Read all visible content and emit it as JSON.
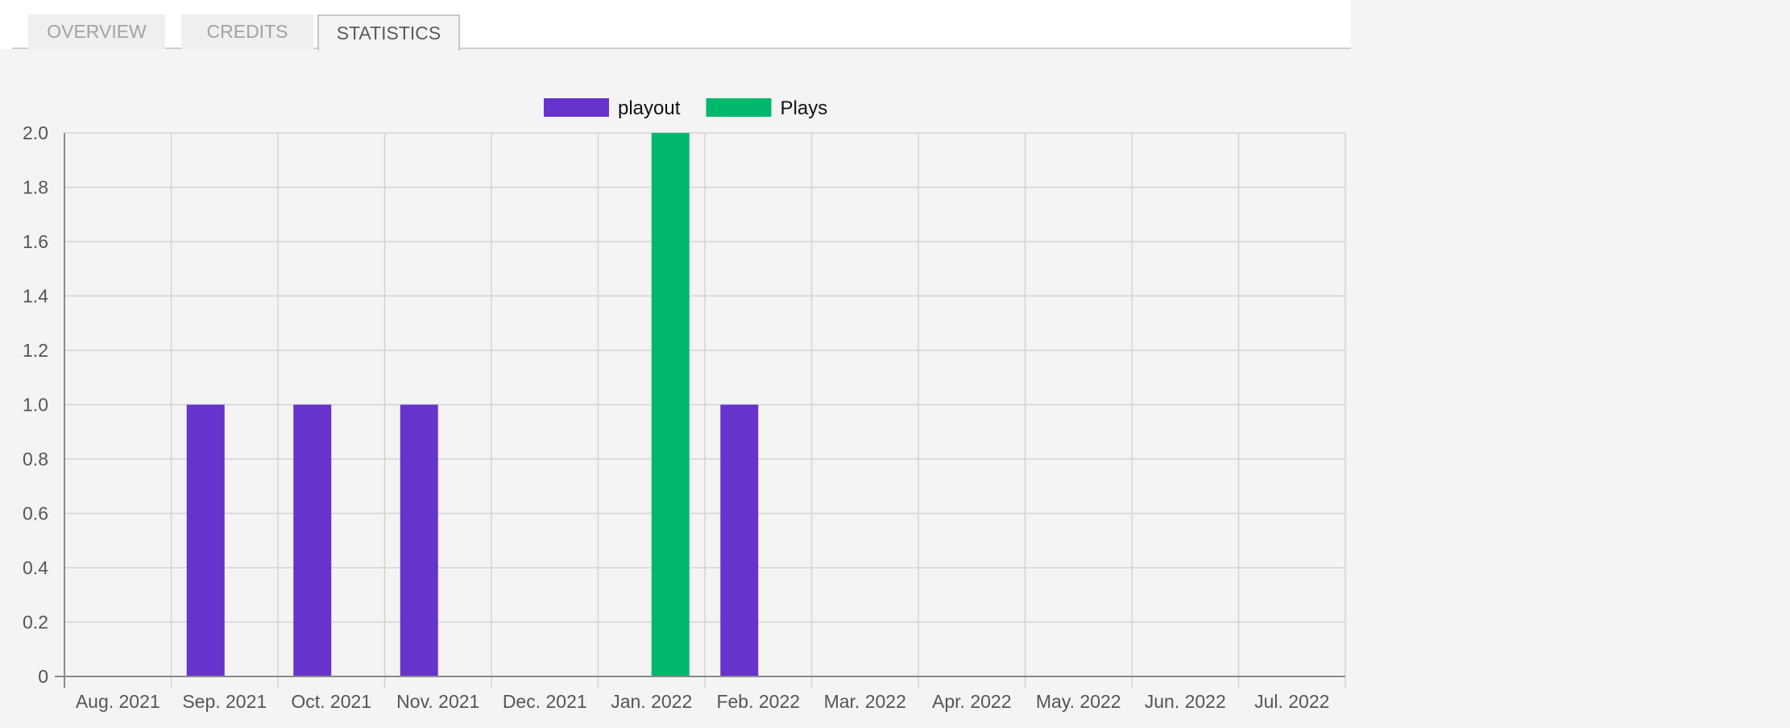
{
  "tabs": [
    {
      "label": "OVERVIEW",
      "active": false
    },
    {
      "label": "CREDITS",
      "active": false
    },
    {
      "label": "STATISTICS",
      "active": true
    }
  ],
  "colors": {
    "playout": "#6633cc",
    "plays": "#00b86b",
    "grid": "#d3d3d3",
    "axis": "#8a8a8a"
  },
  "chart_data": {
    "type": "bar",
    "categories": [
      "Aug. 2021",
      "Sep. 2021",
      "Oct. 2021",
      "Nov. 2021",
      "Dec. 2021",
      "Jan. 2022",
      "Feb. 2022",
      "Mar. 2022",
      "Apr. 2022",
      "May. 2022",
      "Jun. 2022",
      "Jul. 2022"
    ],
    "series": [
      {
        "name": "playout",
        "color": "#6633cc",
        "values": [
          0,
          1,
          1,
          1,
          0,
          0,
          1,
          0,
          0,
          0,
          0,
          0
        ]
      },
      {
        "name": "Plays",
        "color": "#00b86b",
        "values": [
          0,
          0,
          0,
          0,
          0,
          2,
          0,
          0,
          0,
          0,
          0,
          0
        ]
      }
    ],
    "ylim": [
      0,
      2
    ],
    "yticks": [
      "0",
      "0.2",
      "0.4",
      "0.6",
      "0.8",
      "1.0",
      "1.2",
      "1.4",
      "1.6",
      "1.8",
      "2.0"
    ],
    "title": "",
    "xlabel": "",
    "ylabel": "",
    "legend_position": "top-center",
    "grid": true
  }
}
